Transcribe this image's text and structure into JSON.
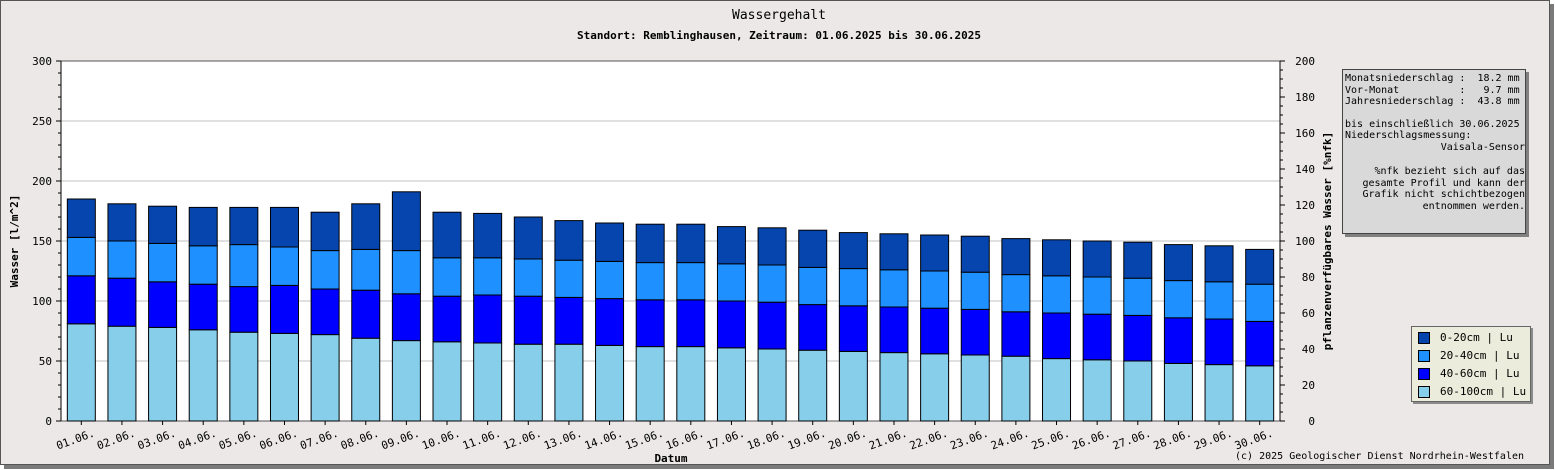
{
  "chart_data": {
    "type": "bar",
    "stacked": true,
    "title": "Wassergehalt",
    "subtitle": "Standort: Remblinghausen, Zeitraum: 01.06.2025 bis 30.06.2025",
    "xlabel": "Datum",
    "ylabel": "Wasser [l/m^2]",
    "ylabel_right": "pflanzenverfügbares Wasser [%nfk]",
    "ylim": [
      0,
      300
    ],
    "ylim_right": [
      0,
      200
    ],
    "yticks": [
      0,
      50,
      100,
      150,
      200,
      250,
      300
    ],
    "yticks_right": [
      0,
      20,
      40,
      60,
      80,
      100,
      120,
      140,
      160,
      180,
      200
    ],
    "grid": true,
    "legend_position": "bottom-right",
    "categories": [
      "01.06.",
      "02.06.",
      "03.06.",
      "04.06.",
      "05.06.",
      "06.06.",
      "07.06.",
      "08.06.",
      "09.06.",
      "10.06.",
      "11.06.",
      "12.06.",
      "13.06.",
      "14.06.",
      "15.06.",
      "16.06.",
      "17.06.",
      "18.06.",
      "19.06.",
      "20.06.",
      "21.06.",
      "22.06.",
      "23.06.",
      "24.06.",
      "25.06.",
      "26.06.",
      "27.06.",
      "28.06.",
      "29.06.",
      "30.06."
    ],
    "series": [
      {
        "name": "60-100cm | Lu",
        "color": "#87ceeb",
        "values": [
          81,
          79,
          78,
          76,
          74,
          73,
          72,
          69,
          67,
          66,
          65,
          64,
          64,
          63,
          62,
          62,
          61,
          60,
          59,
          58,
          57,
          56,
          55,
          54,
          52,
          51,
          50,
          48,
          47,
          46
        ]
      },
      {
        "name": "40-60cm | Lu",
        "color": "#0000ff",
        "values": [
          40,
          40,
          38,
          38,
          38,
          40,
          38,
          40,
          39,
          38,
          40,
          40,
          39,
          39,
          39,
          39,
          39,
          39,
          38,
          38,
          38,
          38,
          38,
          37,
          38,
          38,
          38,
          38,
          38,
          37
        ]
      },
      {
        "name": "20-40cm | Lu",
        "color": "#1e90ff",
        "values": [
          32,
          31,
          32,
          32,
          35,
          32,
          32,
          34,
          36,
          32,
          31,
          31,
          31,
          31,
          31,
          31,
          31,
          31,
          31,
          31,
          31,
          31,
          31,
          31,
          31,
          31,
          31,
          31,
          31,
          31
        ]
      },
      {
        "name": "0-20cm | Lu",
        "color": "#0645ad",
        "values": [
          32,
          31,
          31,
          32,
          31,
          33,
          32,
          38,
          49,
          38,
          37,
          35,
          33,
          32,
          32,
          32,
          31,
          31,
          31,
          30,
          30,
          30,
          30,
          30,
          30,
          30,
          30,
          30,
          30,
          29
        ]
      }
    ],
    "colors": {
      "grid": "#c0c0c0",
      "plot_bg": "#ffffff",
      "frame_bg": "#ebe8e7"
    }
  },
  "info_box": {
    "lines": [
      "Monatsniederschlag :  18.2 mm",
      "Vor-Monat          :   9.7 mm",
      "Jahresniederschlag :  43.8 mm"
    ],
    "period": "bis einschließlich 30.06.2025",
    "measure_label": "Niederschlagsmessung:",
    "sensor": "Vaisala-Sensor",
    "note": "%nfk bezieht sich auf das gesamte Profil und kann der Grafik nicht schichtbezogen entnommen werden."
  },
  "legend": [
    {
      "label": "0-20cm | Lu",
      "color": "#0645ad"
    },
    {
      "label": "20-40cm | Lu",
      "color": "#1e90ff"
    },
    {
      "label": "40-60cm | Lu",
      "color": "#0000ff"
    },
    {
      "label": "60-100cm | Lu",
      "color": "#87ceeb"
    }
  ],
  "copyright": "(c) 2025 Geologischer Dienst Nordrhein-Westfalen"
}
